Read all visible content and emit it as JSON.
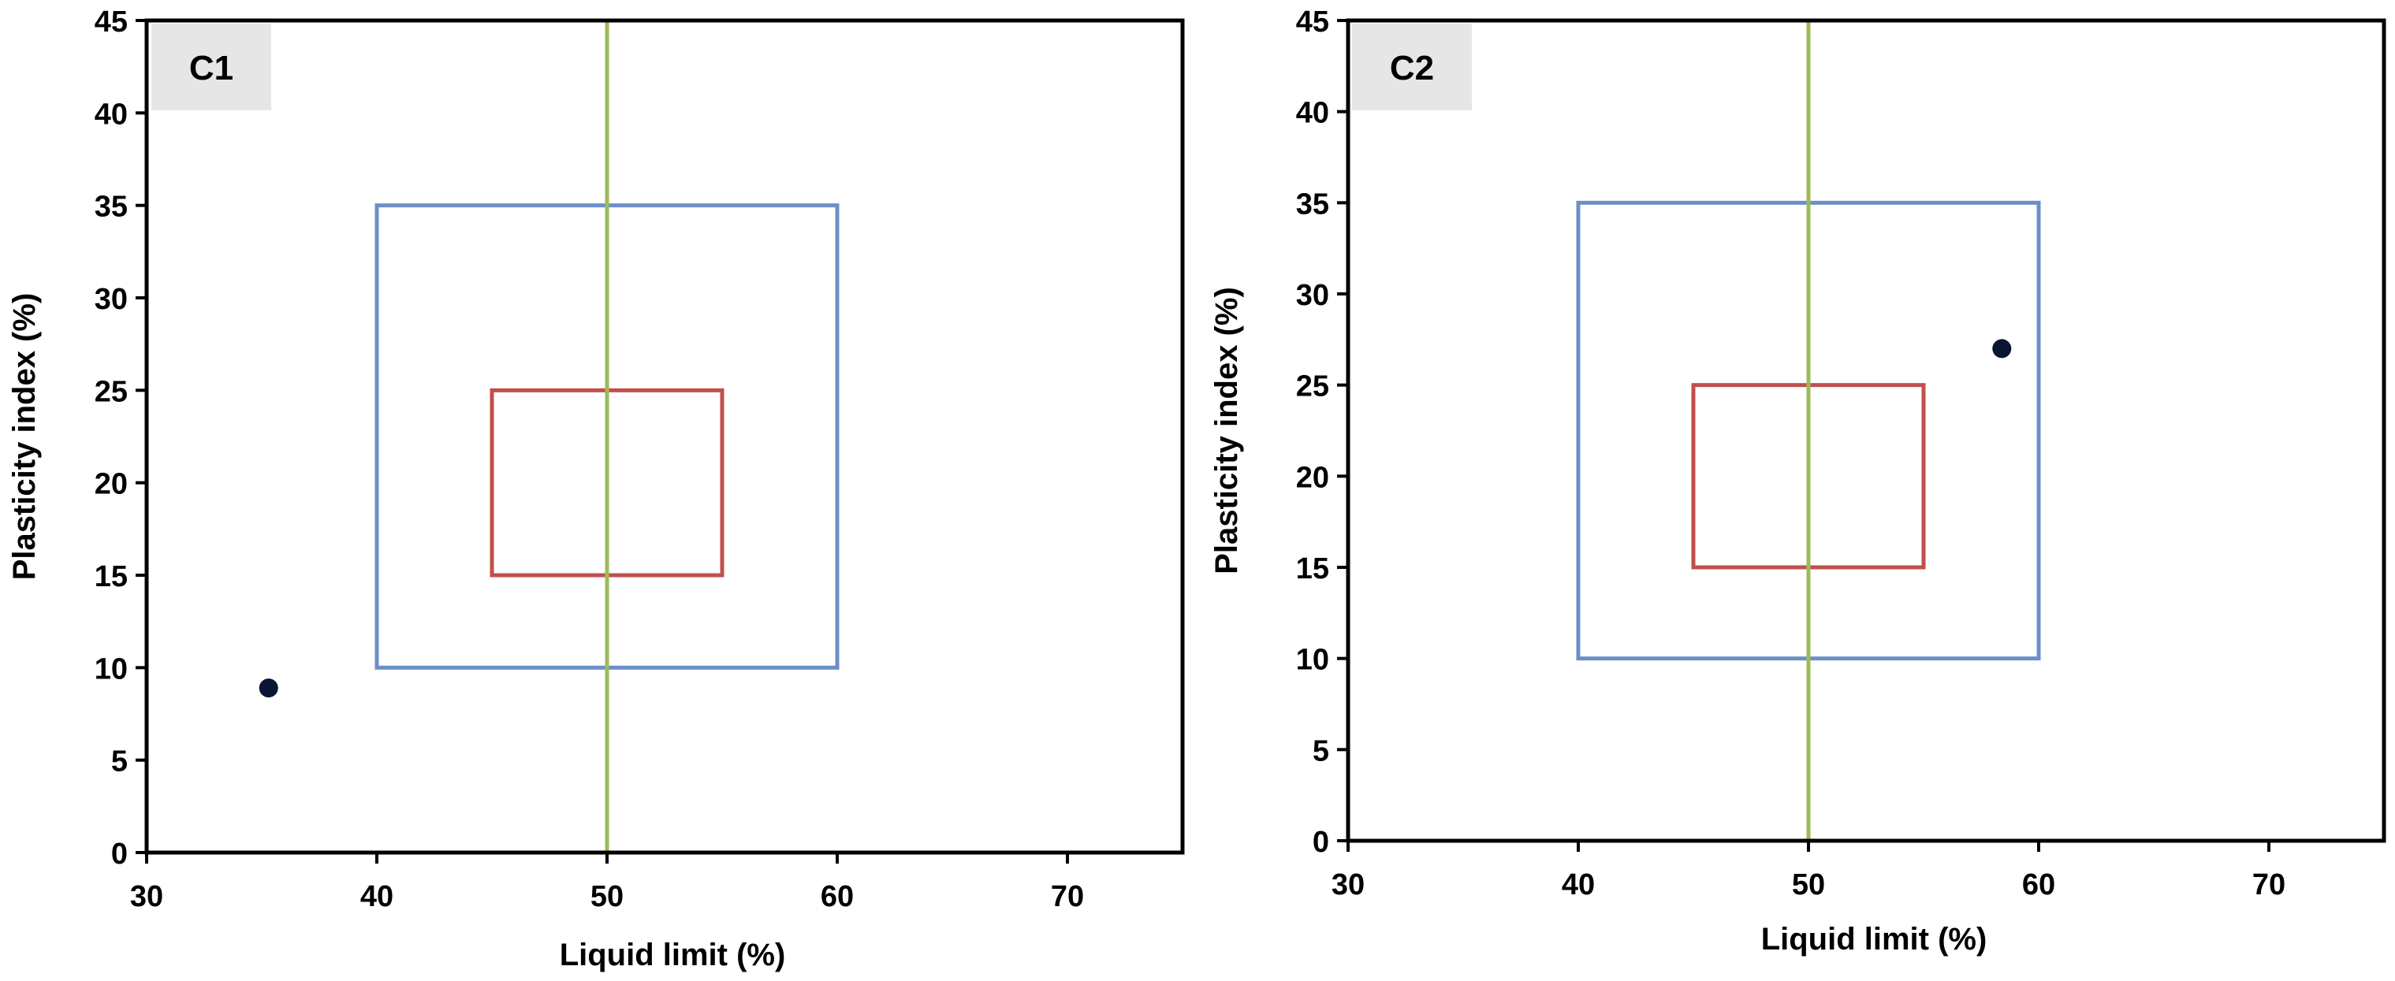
{
  "chart_data": [
    {
      "type": "scatter",
      "panel_label": "C1",
      "xlabel": "Liquid limit (%)",
      "ylabel": "Plasticity index (%)",
      "xlim": [
        30,
        75
      ],
      "ylim": [
        0,
        45
      ],
      "x_ticks": [
        30,
        40,
        50,
        60,
        70
      ],
      "y_ticks": [
        0,
        5,
        10,
        15,
        20,
        25,
        30,
        35,
        40,
        45
      ],
      "grid": false,
      "points": [
        {
          "x": 35.3,
          "y": 8.9
        }
      ],
      "regions": [
        {
          "x_range": [
            40,
            60
          ],
          "y_range": [
            10,
            35
          ],
          "color": "#6b8fc7"
        },
        {
          "x_range": [
            45,
            55
          ],
          "y_range": [
            15,
            25
          ],
          "color": "#c0504d"
        }
      ],
      "reference_lines": [
        {
          "x": 50,
          "color": "#9bbb59"
        }
      ]
    },
    {
      "type": "scatter",
      "panel_label": "C2",
      "xlabel": "Liquid limit (%)",
      "ylabel": "Plasticity index (%)",
      "xlim": [
        30,
        75
      ],
      "ylim": [
        0,
        45
      ],
      "x_ticks": [
        30,
        40,
        50,
        60,
        70
      ],
      "y_ticks": [
        0,
        5,
        10,
        15,
        20,
        25,
        30,
        35,
        40,
        45
      ],
      "grid": false,
      "points": [
        {
          "x": 58.4,
          "y": 27.0
        }
      ],
      "regions": [
        {
          "x_range": [
            40,
            60
          ],
          "y_range": [
            10,
            35
          ],
          "color": "#6b8fc7"
        },
        {
          "x_range": [
            45,
            55
          ],
          "y_range": [
            15,
            25
          ],
          "color": "#c0504d"
        }
      ],
      "reference_lines": [
        {
          "x": 50,
          "color": "#9bbb59"
        }
      ]
    }
  ],
  "colors": {
    "axis": "#000000",
    "point": "#0a1433",
    "label_box": "#e6e6e6"
  }
}
